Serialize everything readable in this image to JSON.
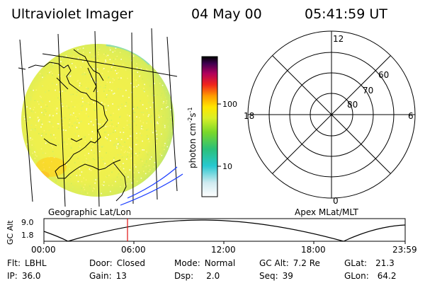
{
  "header": {
    "instrument": "Ultraviolet Imager",
    "date": "04 May 00",
    "time": "05:41:59 UT"
  },
  "panels": {
    "left_label": "Geographic Lat/Lon",
    "right_label": "Apex MLat/MLT"
  },
  "colorbar": {
    "unit_label": "photon cm",
    "exp1": "-2",
    "unit_mid": "s",
    "exp2": "-1",
    "ticks": [
      "100",
      "10"
    ]
  },
  "polar_plot": {
    "mlt_labels": {
      "top": "12",
      "left": "18",
      "right": "6",
      "bottom": "0"
    },
    "lat_labels": [
      "60",
      "70",
      "80"
    ]
  },
  "altitude_plot": {
    "axis_label": "GC Alt",
    "y_ticks": [
      "9.0",
      "1.8"
    ],
    "x_ticks": [
      "00:00",
      "06:00",
      "12:00",
      "18:00",
      "23:59"
    ]
  },
  "status": {
    "row1": [
      {
        "label": "Flt:",
        "value": "LBHL"
      },
      {
        "label": "Door:",
        "value": "Closed"
      },
      {
        "label": "Mode:",
        "value": "Normal"
      },
      {
        "label": "GC Alt:",
        "value": "7.2 Re"
      },
      {
        "label": "GLat:",
        "value": "21.3"
      }
    ],
    "row2": [
      {
        "label": "IP:",
        "value": "36.0"
      },
      {
        "label": "Gain:",
        "value": "13"
      },
      {
        "label": "Dsp:",
        "value": "2.0"
      },
      {
        "label": "Seq:",
        "value": "39"
      },
      {
        "label": "GLon:",
        "value": "64.2"
      }
    ]
  },
  "colors": {
    "coastline": "#000000",
    "earth_fill": "#f1ef4a",
    "grid_blue": "#1a3cff",
    "time_marker": "#e01010"
  }
}
